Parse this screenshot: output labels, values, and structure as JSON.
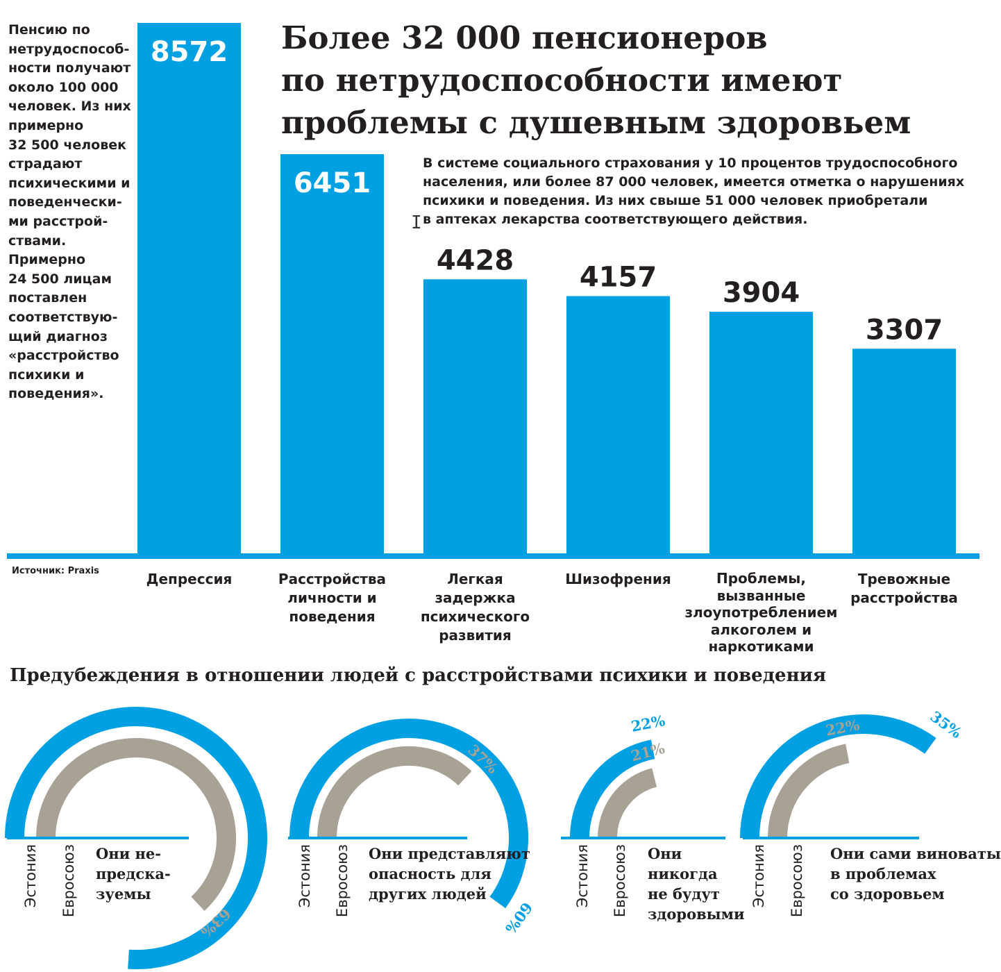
{
  "side_note": "Пенсию по\nнетрудоспособ-\nности получают\nоколо 100 000\nчеловек. Из них\nпримерно\n32 500 человек\nстрадают\nпсихическими и\nповеденчески-\nми расстрой-\nствами.\nПримерно\n24 500 лицам\nпоставлен\nсоответствую-\nщий диагноз\n«расстройство\nпсихики и\nповедения».",
  "title": "Более 32 000 пенсионеров\nпо нетрудоспособности имеют\nпроблемы с душевным здоровьем",
  "intro": "В системе социального страхования у 10 процентов трудоспособного\nнаселения, или более 87 000 человек, имеется отметка о нарушениях\nпсихики и поведения. Из них свыше 51 000 человек приобретали\nв аптеках лекарства соответствующего действия.",
  "source": "Источник: Praxis",
  "colors": {
    "blue": "#00a0e3",
    "gray": "#a8a294",
    "text": "#231f20"
  },
  "chart_data": [
    {
      "type": "bar",
      "title": "Более 32 000 пенсионеров по нетрудоспособности имеют проблемы с душевным здоровьем",
      "categories": [
        "Депрессия",
        "Расстройства\nличности и\nповедения",
        "Легкая\nзадержка\nпсихического\nразвития",
        "Шизофрения",
        "Проблемы,\nвызванные\nзлоупотреблением\nалкоголем и\nнаркотиками",
        "Тревожные\nрасстройства"
      ],
      "values": [
        8572,
        6451,
        4428,
        4157,
        3904,
        3307
      ],
      "ylim": [
        0,
        8572
      ],
      "xlabel": "",
      "ylabel": "",
      "grid": false
    },
    {
      "type": "gauge",
      "title": "Предубеждения в отношении людей с расстройствами психики и поведения",
      "series": [
        {
          "name": "Эстония",
          "color": "#00a0e3"
        },
        {
          "name": "Евросоюз",
          "color": "#a8a294"
        }
      ],
      "items": [
        {
          "statement": "Они не-\nпредска-\nзуемы",
          "estonia": 76,
          "eu": 63
        },
        {
          "statement": "Они представляют\nопасность для\nдругих людей",
          "estonia": 60,
          "eu": 37
        },
        {
          "statement": "Они\nникогда\nне будут\nздоровыми",
          "estonia": 22,
          "eu": 21
        },
        {
          "statement": "Они сами виноваты\nв проблемах\nсо здоровьем",
          "estonia": 35,
          "eu": 22
        }
      ]
    }
  ]
}
